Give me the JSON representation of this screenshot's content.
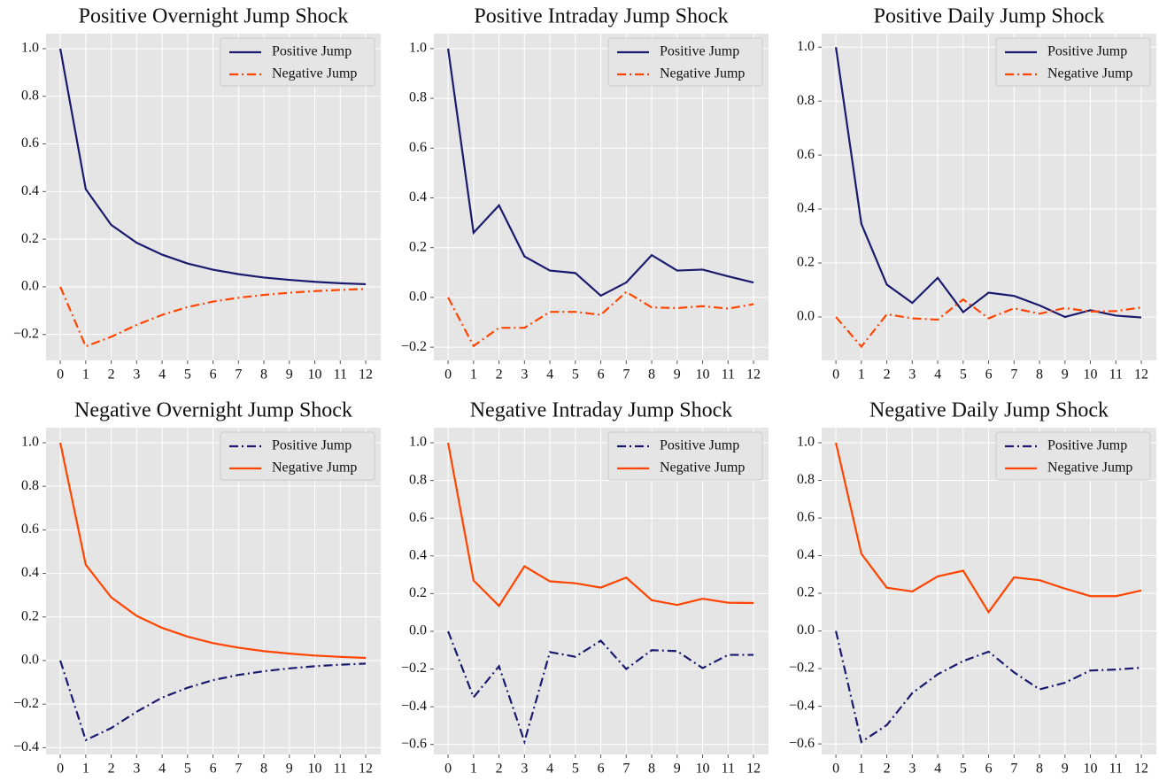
{
  "chart_data": [
    {
      "type": "line",
      "title": "Positive Overnight Jump Shock",
      "x": [
        0,
        1,
        2,
        3,
        4,
        5,
        6,
        7,
        8,
        9,
        10,
        11,
        12
      ],
      "xlim": [
        -0.56,
        12.59
      ],
      "xticks": [
        0,
        1,
        2,
        3,
        4,
        5,
        6,
        7,
        8,
        9,
        10,
        11,
        12
      ],
      "ylim": [
        -0.309,
        1.063
      ],
      "yticks": [
        {
          "value": -0.2,
          "label": "−0.2"
        },
        {
          "value": 0,
          "label": "0.0"
        },
        {
          "value": 0.2,
          "label": "0.2"
        },
        {
          "value": 0.4,
          "label": "0.4"
        },
        {
          "value": 0.6,
          "label": "0.6"
        },
        {
          "value": 0.8,
          "label": "0.8"
        },
        {
          "value": 1,
          "label": "1.0"
        }
      ],
      "grid": true,
      "legend": "upper right",
      "series": [
        {
          "name": "Positive Jump",
          "color": "#1a1a6e",
          "linestyle": "solid",
          "values": [
            1.0,
            0.41,
            0.26,
            0.185,
            0.135,
            0.098,
            0.072,
            0.053,
            0.039,
            0.029,
            0.021,
            0.015,
            0.011
          ]
        },
        {
          "name": "Negative Jump",
          "color": "#ff4500",
          "linestyle": "dashdot",
          "values": [
            0,
            -0.25,
            -0.21,
            -0.16,
            -0.118,
            -0.085,
            -0.062,
            -0.046,
            -0.034,
            -0.025,
            -0.018,
            -0.013,
            -0.009
          ]
        }
      ]
    },
    {
      "type": "line",
      "title": "Positive Intraday Jump Shock",
      "x": [
        0,
        1,
        2,
        3,
        4,
        5,
        6,
        7,
        8,
        9,
        10,
        11,
        12
      ],
      "xlim": [
        -0.56,
        12.59
      ],
      "xticks": [
        0,
        1,
        2,
        3,
        4,
        5,
        6,
        7,
        8,
        9,
        10,
        11,
        12
      ],
      "ylim": [
        -0.253,
        1.06
      ],
      "yticks": [
        {
          "value": -0.2,
          "label": "−0.2"
        },
        {
          "value": 0,
          "label": "0.0"
        },
        {
          "value": 0.2,
          "label": "0.2"
        },
        {
          "value": 0.4,
          "label": "0.4"
        },
        {
          "value": 0.6,
          "label": "0.6"
        },
        {
          "value": 0.8,
          "label": "0.8"
        },
        {
          "value": 1,
          "label": "1.0"
        }
      ],
      "grid": true,
      "legend": "upper right",
      "series": [
        {
          "name": "Positive Jump",
          "color": "#1a1a6e",
          "linestyle": "solid",
          "values": [
            1.0,
            0.26,
            0.37,
            0.165,
            0.108,
            0.098,
            0.007,
            0.06,
            0.17,
            0.108,
            0.112,
            0.085,
            0.06
          ]
        },
        {
          "name": "Negative Jump",
          "color": "#ff4500",
          "linestyle": "dashdot",
          "values": [
            0,
            -0.195,
            -0.122,
            -0.122,
            -0.058,
            -0.058,
            -0.07,
            0.022,
            -0.04,
            -0.043,
            -0.035,
            -0.045,
            -0.027
          ]
        }
      ]
    },
    {
      "type": "line",
      "title": "Positive Daily Jump Shock",
      "x": [
        0,
        1,
        2,
        3,
        4,
        5,
        6,
        7,
        8,
        9,
        10,
        11,
        12
      ],
      "xlim": [
        -0.56,
        12.59
      ],
      "xticks": [
        0,
        1,
        2,
        3,
        4,
        5,
        6,
        7,
        8,
        9,
        10,
        11,
        12
      ],
      "ylim": [
        -0.161,
        1.05
      ],
      "yticks": [
        {
          "value": 0,
          "label": "0.0"
        },
        {
          "value": 0.2,
          "label": "0.2"
        },
        {
          "value": 0.4,
          "label": "0.4"
        },
        {
          "value": 0.6,
          "label": "0.6"
        },
        {
          "value": 0.8,
          "label": "0.8"
        },
        {
          "value": 1,
          "label": "1.0"
        }
      ],
      "grid": true,
      "legend": "upper right",
      "series": [
        {
          "name": "Positive Jump",
          "color": "#1a1a6e",
          "linestyle": "solid",
          "values": [
            1.0,
            0.345,
            0.12,
            0.052,
            0.145,
            0.018,
            0.09,
            0.078,
            0.043,
            0.0,
            0.025,
            0.005,
            -0.002
          ]
        },
        {
          "name": "Negative Jump",
          "color": "#ff4500",
          "linestyle": "dashdot",
          "values": [
            0,
            -0.11,
            0.01,
            -0.005,
            -0.01,
            0.065,
            -0.005,
            0.032,
            0.012,
            0.033,
            0.02,
            0.022,
            0.035
          ]
        }
      ]
    },
    {
      "type": "line",
      "title": "Negative Overnight Jump Shock",
      "x": [
        0,
        1,
        2,
        3,
        4,
        5,
        6,
        7,
        8,
        9,
        10,
        11,
        12
      ],
      "xlim": [
        -0.56,
        12.59
      ],
      "xticks": [
        0,
        1,
        2,
        3,
        4,
        5,
        6,
        7,
        8,
        9,
        10,
        11,
        12
      ],
      "ylim": [
        -0.431,
        1.069
      ],
      "yticks": [
        {
          "value": -0.4,
          "label": "−0.4"
        },
        {
          "value": -0.2,
          "label": "−0.2"
        },
        {
          "value": 0,
          "label": "0.0"
        },
        {
          "value": 0.2,
          "label": "0.2"
        },
        {
          "value": 0.4,
          "label": "0.4"
        },
        {
          "value": 0.6,
          "label": "0.6"
        },
        {
          "value": 0.8,
          "label": "0.8"
        },
        {
          "value": 1,
          "label": "1.0"
        }
      ],
      "grid": true,
      "legend": "upper right",
      "series": [
        {
          "name": "Positive Jump",
          "color": "#1a1a6e",
          "linestyle": "dashdot",
          "values": [
            0,
            -0.365,
            -0.31,
            -0.235,
            -0.17,
            -0.125,
            -0.09,
            -0.066,
            -0.049,
            -0.036,
            -0.026,
            -0.019,
            -0.014
          ]
        },
        {
          "name": "Negative Jump",
          "color": "#ff4500",
          "linestyle": "solid",
          "values": [
            1.0,
            0.44,
            0.29,
            0.205,
            0.15,
            0.11,
            0.08,
            0.059,
            0.043,
            0.032,
            0.023,
            0.017,
            0.012
          ]
        }
      ]
    },
    {
      "type": "line",
      "title": "Negative Intraday Jump Shock",
      "x": [
        0,
        1,
        2,
        3,
        4,
        5,
        6,
        7,
        8,
        9,
        10,
        11,
        12
      ],
      "xlim": [
        -0.56,
        12.59
      ],
      "xticks": [
        0,
        1,
        2,
        3,
        4,
        5,
        6,
        7,
        8,
        9,
        10,
        11,
        12
      ],
      "ylim": [
        -0.653,
        1.08
      ],
      "yticks": [
        {
          "value": -0.6,
          "label": "−0.6"
        },
        {
          "value": -0.4,
          "label": "−0.4"
        },
        {
          "value": -0.2,
          "label": "−0.2"
        },
        {
          "value": 0,
          "label": "0.0"
        },
        {
          "value": 0.2,
          "label": "0.2"
        },
        {
          "value": 0.4,
          "label": "0.4"
        },
        {
          "value": 0.6,
          "label": "0.6"
        },
        {
          "value": 0.8,
          "label": "0.8"
        },
        {
          "value": 1,
          "label": "1.0"
        }
      ],
      "grid": true,
      "legend": "upper right",
      "series": [
        {
          "name": "Positive Jump",
          "color": "#1a1a6e",
          "linestyle": "dashdot",
          "values": [
            0,
            -0.35,
            -0.185,
            -0.585,
            -0.11,
            -0.135,
            -0.05,
            -0.2,
            -0.1,
            -0.105,
            -0.195,
            -0.125,
            -0.125
          ]
        },
        {
          "name": "Negative Jump",
          "color": "#ff4500",
          "linestyle": "solid",
          "values": [
            1.0,
            0.27,
            0.135,
            0.345,
            0.265,
            0.255,
            0.232,
            0.285,
            0.165,
            0.14,
            0.173,
            0.152,
            0.15
          ]
        }
      ]
    },
    {
      "type": "line",
      "title": "Negative Daily Jump Shock",
      "x": [
        0,
        1,
        2,
        3,
        4,
        5,
        6,
        7,
        8,
        9,
        10,
        11,
        12
      ],
      "xlim": [
        -0.56,
        12.59
      ],
      "xticks": [
        0,
        1,
        2,
        3,
        4,
        5,
        6,
        7,
        8,
        9,
        10,
        11,
        12
      ],
      "ylim": [
        -0.656,
        1.08
      ],
      "yticks": [
        {
          "value": -0.6,
          "label": "−0.6"
        },
        {
          "value": -0.4,
          "label": "−0.4"
        },
        {
          "value": -0.2,
          "label": "−0.2"
        },
        {
          "value": 0,
          "label": "0.0"
        },
        {
          "value": 0.2,
          "label": "0.2"
        },
        {
          "value": 0.4,
          "label": "0.4"
        },
        {
          "value": 0.6,
          "label": "0.6"
        },
        {
          "value": 0.8,
          "label": "0.8"
        },
        {
          "value": 1,
          "label": "1.0"
        }
      ],
      "grid": true,
      "legend": "upper right",
      "series": [
        {
          "name": "Positive Jump",
          "color": "#1a1a6e",
          "linestyle": "dashdot",
          "values": [
            0,
            -0.59,
            -0.5,
            -0.33,
            -0.23,
            -0.16,
            -0.11,
            -0.22,
            -0.31,
            -0.275,
            -0.21,
            -0.205,
            -0.195
          ]
        },
        {
          "name": "Negative Jump",
          "color": "#ff4500",
          "linestyle": "solid",
          "values": [
            1.0,
            0.41,
            0.23,
            0.21,
            0.29,
            0.32,
            0.1,
            0.285,
            0.27,
            0.225,
            0.185,
            0.185,
            0.215
          ]
        }
      ]
    }
  ]
}
